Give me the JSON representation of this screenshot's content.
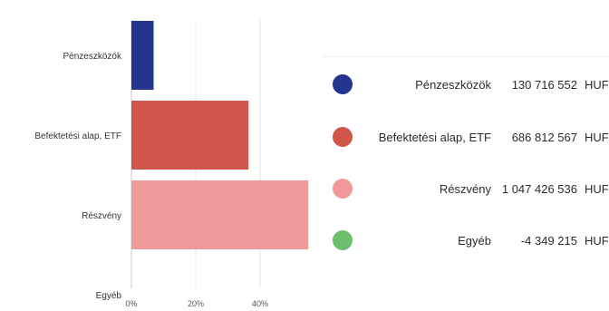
{
  "chart_data": {
    "type": "bar",
    "orientation": "horizontal",
    "categories": [
      "Pénzeszközök",
      "Befektetési alap, ETF",
      "Részvény",
      "Egyéb"
    ],
    "values": [
      6.9,
      36.4,
      55.0,
      -0.2
    ],
    "unit": "%",
    "xlim": [
      0,
      60
    ],
    "xticks": [
      "0%",
      "20%",
      "40%"
    ],
    "xtick_values": [
      0,
      20,
      40
    ],
    "grid": true,
    "colors": [
      "#24348f",
      "#d1564a",
      "#f0999a",
      "#6cbf6c"
    ]
  },
  "legend": [
    {
      "name": "Pénzeszközök",
      "value": "130 716 552",
      "currency": "HUF",
      "color": "#24348f"
    },
    {
      "name": "Befektetési alap, ETF",
      "value": "686 812 567",
      "currency": "HUF",
      "color": "#d1564a"
    },
    {
      "name": "Részvény",
      "value": "1 047 426 536",
      "currency": "HUF",
      "color": "#f0999a"
    },
    {
      "name": "Egyéb",
      "value": "-4 349 215",
      "currency": "HUF",
      "color": "#6cbf6c"
    }
  ]
}
